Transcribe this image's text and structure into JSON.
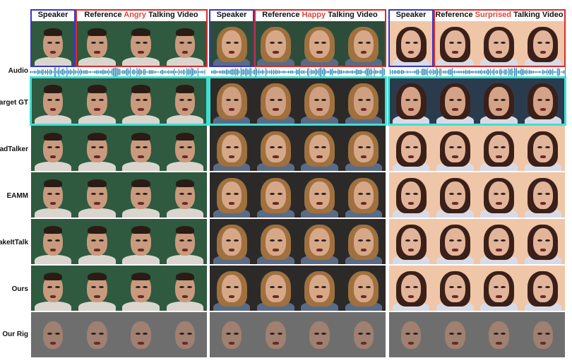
{
  "headers": [
    {
      "speaker": "Speaker",
      "ref_prefix": "Reference ",
      "emotion": "Angry",
      "ref_suffix": " Talking Video"
    },
    {
      "speaker": "Speaker",
      "ref_prefix": "Reference ",
      "emotion": "Happy",
      "ref_suffix": " Talking Video"
    },
    {
      "speaker": "Speaker",
      "ref_prefix": "Reference ",
      "emotion": "Surprised",
      "ref_suffix": " Talking Video"
    }
  ],
  "rows": [
    {
      "label": "Audio"
    },
    {
      "label": "Target GT"
    },
    {
      "label": "SadTalker"
    },
    {
      "label": "EAMM"
    },
    {
      "label": "MakeItTalk"
    },
    {
      "label": "Ours"
    },
    {
      "label": "Our Rig"
    }
  ],
  "colors": {
    "emotion_accent": "#e0453a",
    "speaker_box": "#3a35c8",
    "reference_box": "#d62d2d",
    "target_gt_box": "#3fe0d4",
    "waveform": "#1f7fb0"
  }
}
